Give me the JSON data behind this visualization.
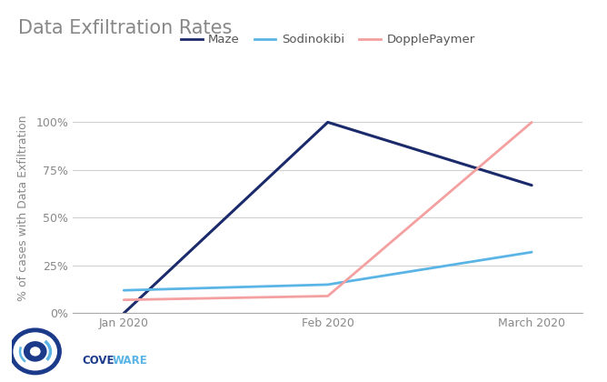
{
  "title": "Data Exfiltration Rates",
  "ylabel": "% of cases with Data Exfiltration",
  "x_labels": [
    "Jan 2020",
    "Feb 2020",
    "March 2020"
  ],
  "x_values": [
    0,
    1,
    2
  ],
  "series": [
    {
      "name": "Maze",
      "color": "#1b2a6b",
      "linewidth": 2.2,
      "values": [
        0,
        100,
        67
      ]
    },
    {
      "name": "Sodinokibi",
      "color": "#5ab4e5",
      "linewidth": 2.0,
      "values": [
        12,
        15,
        32
      ]
    },
    {
      "name": "DopplePaymer",
      "color": "#f4a0a0",
      "linewidth": 2.0,
      "values": [
        7,
        9,
        100
      ]
    }
  ],
  "ylim": [
    0,
    110
  ],
  "yticks": [
    0,
    25,
    50,
    75,
    100
  ],
  "ytick_labels": [
    "0%",
    "25%",
    "50%",
    "75%",
    "100%"
  ],
  "background_color": "#ffffff",
  "grid_color": "#d0d0d0",
  "title_fontsize": 15,
  "title_color": "#888888",
  "legend_fontsize": 9.5,
  "tick_fontsize": 9,
  "ylabel_fontsize": 9
}
